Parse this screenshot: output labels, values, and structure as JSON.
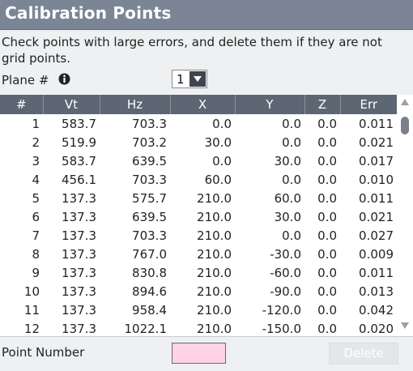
{
  "header": {
    "title": "Calibration Points"
  },
  "instructions": "Check points with large errors, and delete them if they are not grid points.",
  "plane": {
    "label": "Plane #",
    "value": "1",
    "info_icon": "info-icon"
  },
  "table": {
    "columns": [
      "#",
      "Vt",
      "Hz",
      "X",
      "Y",
      "Z",
      "Err"
    ],
    "rows": [
      [
        "1",
        "583.7",
        "703.3",
        "0.0",
        "0.0",
        "0.0",
        "0.011"
      ],
      [
        "2",
        "519.9",
        "703.2",
        "30.0",
        "0.0",
        "0.0",
        "0.021"
      ],
      [
        "3",
        "583.7",
        "639.5",
        "0.0",
        "30.0",
        "0.0",
        "0.017"
      ],
      [
        "4",
        "456.1",
        "703.3",
        "60.0",
        "0.0",
        "0.0",
        "0.010"
      ],
      [
        "5",
        "137.3",
        "575.7",
        "210.0",
        "60.0",
        "0.0",
        "0.011"
      ],
      [
        "6",
        "137.3",
        "639.5",
        "210.0",
        "30.0",
        "0.0",
        "0.021"
      ],
      [
        "7",
        "137.3",
        "703.3",
        "210.0",
        "0.0",
        "0.0",
        "0.027"
      ],
      [
        "8",
        "137.3",
        "767.0",
        "210.0",
        "-30.0",
        "0.0",
        "0.009"
      ],
      [
        "9",
        "137.3",
        "830.8",
        "210.0",
        "-60.0",
        "0.0",
        "0.011"
      ],
      [
        "10",
        "137.3",
        "894.6",
        "210.0",
        "-90.0",
        "0.0",
        "0.013"
      ],
      [
        "11",
        "137.3",
        "958.4",
        "210.0",
        "-120.0",
        "0.0",
        "0.042"
      ],
      [
        "12",
        "137.3",
        "1022.1",
        "210.0",
        "-150.0",
        "0.0",
        "0.020"
      ]
    ]
  },
  "point_number": {
    "label": "Point Number",
    "value": ""
  },
  "delete_button": {
    "label": "Delete"
  },
  "colors": {
    "title_bar": "#7b8595",
    "table_header": "#5d6673",
    "input_highlight": "#ffd3e4",
    "panel": "#eef0f2"
  }
}
